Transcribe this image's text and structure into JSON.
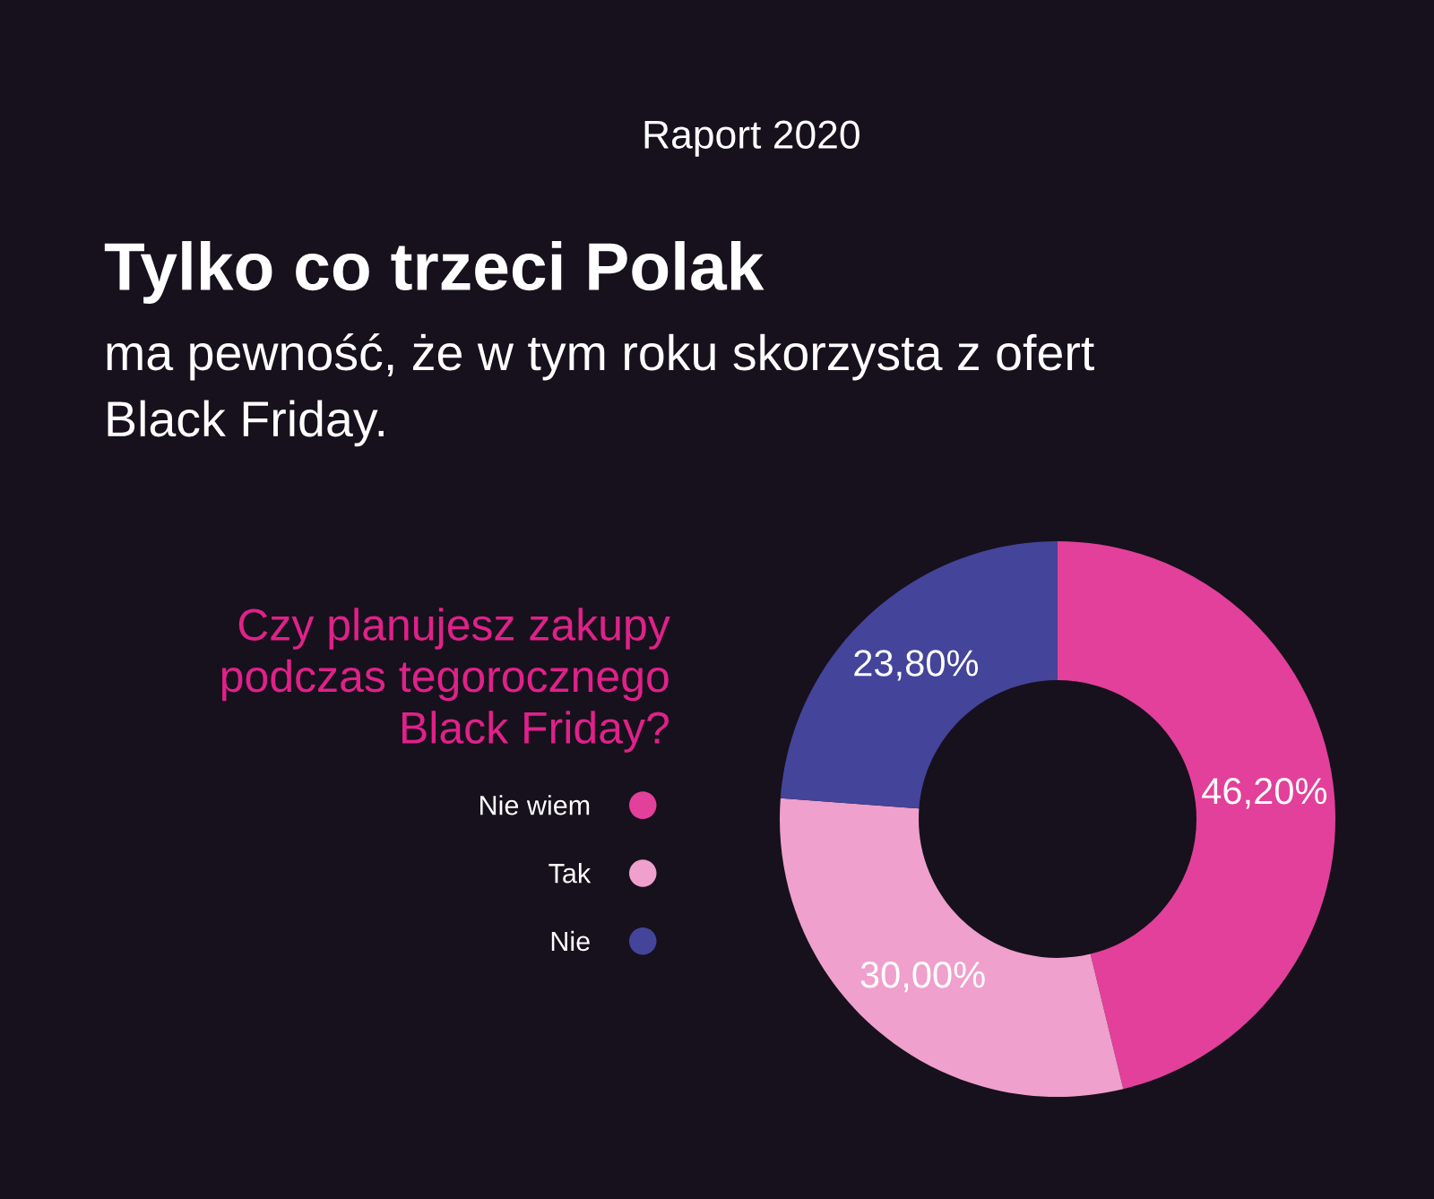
{
  "chart_data": {
    "type": "donut",
    "title": "Tylko co trzeci Polak",
    "subtitle": "ma pewność, że w tym roku skorzysta z ofert\nBlack Friday.",
    "annotations": [
      "Raport 2020"
    ],
    "legend_title": "Czy planujesz zakupy\npodczas tegorocznego\nBlack Friday?",
    "legend": "left",
    "categories": [
      "Nie wiem",
      "Tak",
      "Nie"
    ],
    "values": [
      46.2,
      30.0,
      23.8
    ],
    "value_labels": [
      "46,20%",
      "30,00%",
      "23,80%"
    ],
    "colors": [
      "#e2409a",
      "#efa0cc",
      "#44449a"
    ]
  }
}
